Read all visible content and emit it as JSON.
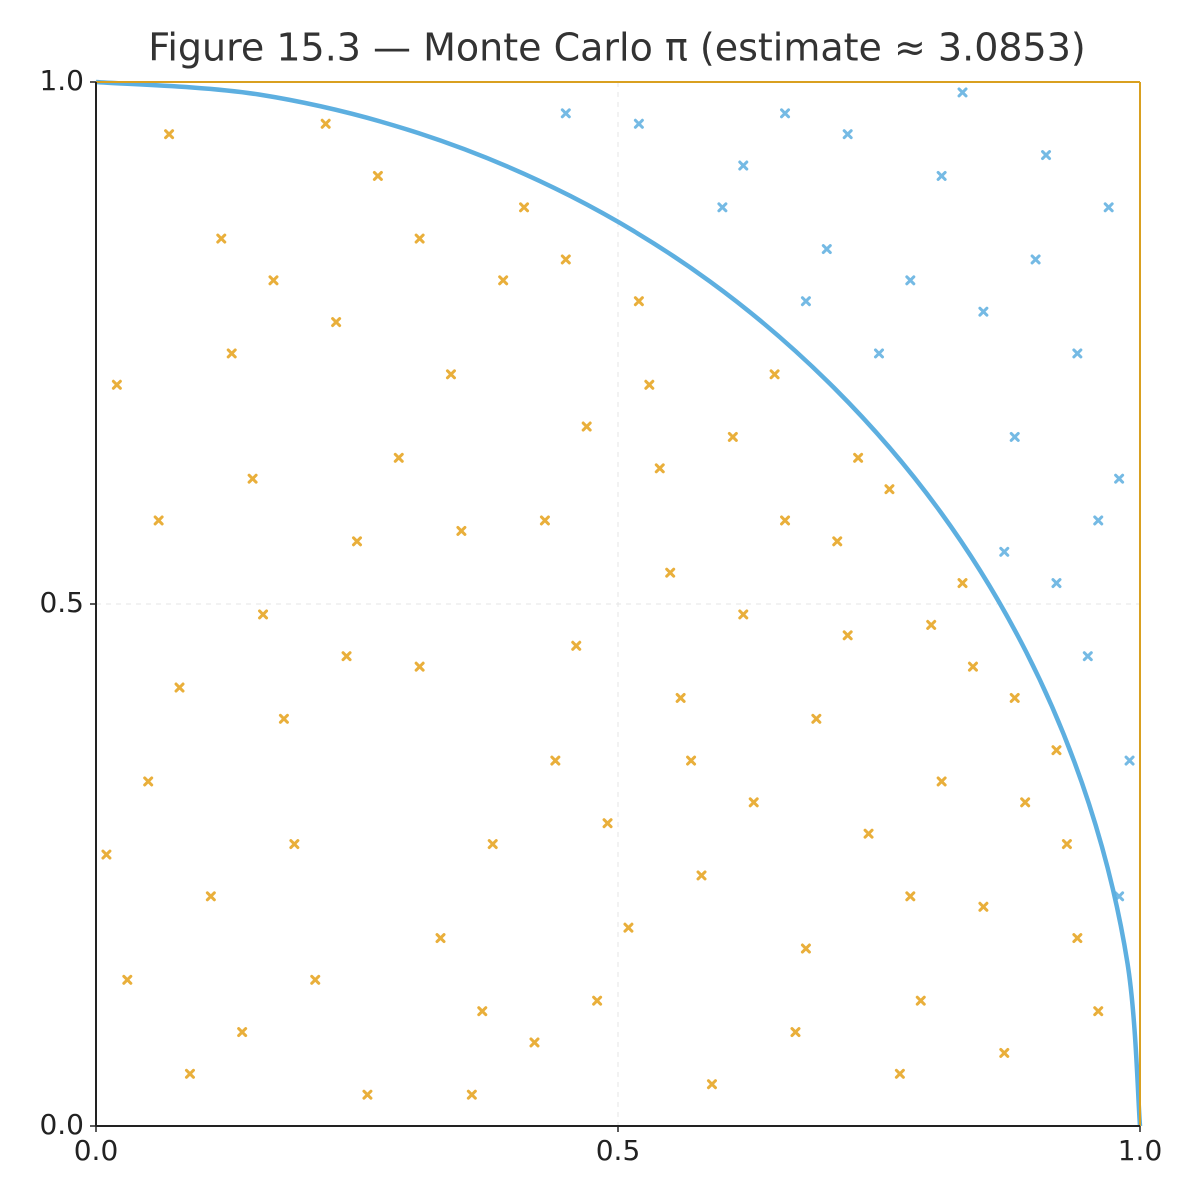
{
  "chart_data": {
    "type": "scatter",
    "title": "Figure 15.3 — Monte Carlo π (estimate ≈ 3.0853)",
    "xlim": [
      0,
      1
    ],
    "ylim": [
      0,
      1
    ],
    "xticks": [
      {
        "value": 0,
        "label": "0.0"
      },
      {
        "value": 0.5,
        "label": "0.5"
      },
      {
        "value": 1,
        "label": "1.0"
      }
    ],
    "yticks": [
      {
        "value": 0,
        "label": "0.0"
      },
      {
        "value": 0.5,
        "label": "0.5"
      },
      {
        "value": 1,
        "label": "1.0"
      }
    ],
    "grid": true,
    "series": [
      {
        "type": "scatter",
        "color": "#e6a21a",
        "x": [
          0.12,
          0.34,
          0.56,
          0.78,
          0.05,
          0.21,
          0.43,
          0.67,
          0.89,
          0.15,
          0.38,
          0.61,
          0.27,
          0.72,
          0.09,
          0.48,
          0.83,
          0.31,
          0.52,
          0.94,
          0.18,
          0.63,
          0.41,
          0.76,
          0.02,
          0.25,
          0.58,
          0.87,
          0.36,
          0.69,
          0.11,
          0.47,
          0.79,
          0.23,
          0.55,
          0.92,
          0.07,
          0.33,
          0.65,
          0.16,
          0.44,
          0.74,
          0.29,
          0.59,
          0.84,
          0.03,
          0.39,
          0.71,
          0.19,
          0.51,
          0.96,
          0.26,
          0.62,
          0.13,
          0.46,
          0.81,
          0.35,
          0.68,
          0.08,
          0.54,
          0.22,
          0.77,
          0.42,
          0.88,
          0.14,
          0.57,
          0.31,
          0.73,
          0.06,
          0.49,
          0.85,
          0.24,
          0.66,
          0.37,
          0.93,
          0.17,
          0.53,
          0.01,
          0.45,
          0.8
        ],
        "y": [
          0.85,
          0.72,
          0.41,
          0.22,
          0.33,
          0.14,
          0.58,
          0.09,
          0.31,
          0.62,
          0.27,
          0.66,
          0.91,
          0.47,
          0.05,
          0.12,
          0.52,
          0.44,
          0.79,
          0.18,
          0.39,
          0.31,
          0.88,
          0.61,
          0.71,
          0.56,
          0.24,
          0.07,
          0.03,
          0.39,
          0.22,
          0.67,
          0.12,
          0.77,
          0.53,
          0.36,
          0.95,
          0.18,
          0.72,
          0.49,
          0.35,
          0.28,
          0.64,
          0.04,
          0.44,
          0.14,
          0.81,
          0.56,
          0.27,
          0.19,
          0.11,
          0.03,
          0.49,
          0.74,
          0.46,
          0.33,
          0.57,
          0.17,
          0.42,
          0.63,
          0.96,
          0.05,
          0.08,
          0.41,
          0.09,
          0.35,
          0.85,
          0.64,
          0.58,
          0.29,
          0.21,
          0.45,
          0.58,
          0.11,
          0.27,
          0.81,
          0.71,
          0.26,
          0.83,
          0.48
        ]
      },
      {
        "type": "scatter",
        "color": "#5dafe0",
        "x": [
          0.91,
          0.72,
          0.98,
          0.85,
          0.6,
          0.95,
          0.78,
          0.66,
          0.88,
          0.99,
          0.52,
          0.81,
          0.94,
          0.7,
          0.87,
          0.97,
          0.62,
          0.92,
          0.75,
          0.83,
          0.45,
          0.98,
          0.9,
          0.68,
          0.96
        ],
        "y": [
          0.93,
          0.95,
          0.62,
          0.78,
          0.88,
          0.45,
          0.81,
          0.97,
          0.66,
          0.35,
          0.96,
          0.91,
          0.74,
          0.84,
          0.55,
          0.88,
          0.92,
          0.52,
          0.74,
          0.99,
          0.97,
          0.22,
          0.83,
          0.79,
          0.58
        ]
      },
      {
        "type": "line",
        "color": "#5dafe0",
        "x": [
          1,
          0.988,
          0.951,
          0.891,
          0.809,
          0.707,
          0.588,
          0.454,
          0.309,
          0.156,
          0
        ],
        "y": [
          0,
          0.156,
          0.309,
          0.454,
          0.588,
          0.707,
          0.809,
          0.891,
          0.951,
          0.988,
          1
        ]
      }
    ]
  }
}
